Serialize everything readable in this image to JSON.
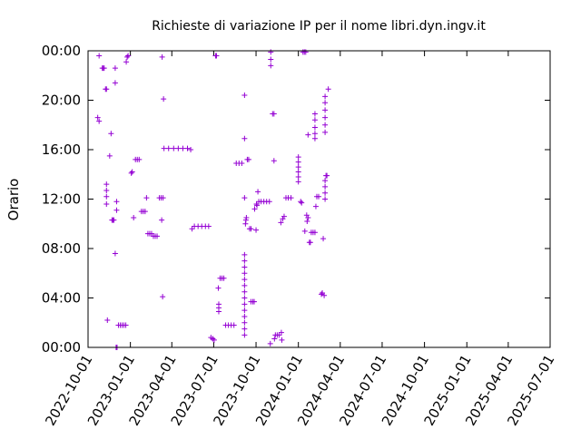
{
  "chart_data": {
    "type": "scatter",
    "title": "Richieste di variazione IP per il nome libri.dyn.ingv.it",
    "xlabel": "",
    "ylabel": "Orario",
    "x_range": [
      "2022-10-01",
      "2025-07-01"
    ],
    "y_range_hours": [
      0,
      24
    ],
    "x_ticks": [
      "2022-10-01",
      "2023-01-01",
      "2023-04-01",
      "2023-07-01",
      "2023-10-01",
      "2024-01-01",
      "2024-04-01",
      "2024-07-01",
      "2024-10-01",
      "2025-01-01",
      "2025-04-01",
      "2025-07-01"
    ],
    "y_ticks": [
      "00:00",
      "04:00",
      "08:00",
      "12:00",
      "16:00",
      "20:00",
      "00:00"
    ],
    "y_tick_values": [
      0,
      4,
      8,
      12,
      16,
      20,
      24
    ],
    "marker": "+",
    "color": "#9400D3",
    "grid": false,
    "legend": "none",
    "series": [
      {
        "points": [
          [
            "2022-10-25",
            23.6
          ],
          [
            "2022-11-01",
            22.6
          ],
          [
            "2022-11-03",
            22.6
          ],
          [
            "2022-11-05",
            22.6
          ],
          [
            "2022-11-08",
            20.9
          ],
          [
            "2022-11-10",
            20.9
          ],
          [
            "2022-10-22",
            18.6
          ],
          [
            "2022-10-25",
            18.3
          ],
          [
            "2022-11-10",
            13.2
          ],
          [
            "2022-11-10",
            12.7
          ],
          [
            "2022-11-10",
            12.2
          ],
          [
            "2022-11-10",
            11.6
          ],
          [
            "2022-11-17",
            15.5
          ],
          [
            "2022-11-20",
            17.3
          ],
          [
            "2022-11-22",
            10.3
          ],
          [
            "2022-11-24",
            10.3
          ],
          [
            "2022-11-26",
            10.3
          ],
          [
            "2022-11-12",
            2.2
          ],
          [
            "2022-11-29",
            7.6
          ],
          [
            "2022-11-29",
            21.4
          ],
          [
            "2022-11-29",
            22.6
          ],
          [
            "2022-12-02",
            11.8
          ],
          [
            "2022-12-02",
            11.1
          ],
          [
            "2022-12-01",
            0.0
          ],
          [
            "2022-12-03",
            0.0
          ],
          [
            "2022-12-06",
            1.8
          ],
          [
            "2022-12-10",
            1.8
          ],
          [
            "2022-12-14",
            1.8
          ],
          [
            "2022-12-18",
            1.8
          ],
          [
            "2022-12-22",
            1.8
          ],
          [
            "2022-12-23",
            23.1
          ],
          [
            "2022-12-25",
            23.5
          ],
          [
            "2022-12-27",
            23.6
          ],
          [
            "2023-01-03",
            14.1
          ],
          [
            "2023-01-05",
            14.2
          ],
          [
            "2023-01-08",
            10.5
          ],
          [
            "2023-01-12",
            15.2
          ],
          [
            "2023-01-16",
            15.2
          ],
          [
            "2023-01-20",
            15.2
          ],
          [
            "2023-01-25",
            11.0
          ],
          [
            "2023-01-29",
            11.0
          ],
          [
            "2023-02-02",
            11.0
          ],
          [
            "2023-02-05",
            12.1
          ],
          [
            "2023-02-08",
            9.2
          ],
          [
            "2023-02-12",
            9.2
          ],
          [
            "2023-02-16",
            9.2
          ],
          [
            "2023-02-20",
            9.0
          ],
          [
            "2023-02-24",
            9.0
          ],
          [
            "2023-02-28",
            9.0
          ],
          [
            "2023-03-05",
            12.1
          ],
          [
            "2023-03-09",
            12.1
          ],
          [
            "2023-03-13",
            12.1
          ],
          [
            "2023-03-10",
            10.3
          ],
          [
            "2023-03-12",
            4.1
          ],
          [
            "2023-03-14",
            20.1
          ],
          [
            "2023-03-11",
            23.5
          ],
          [
            "2023-03-15",
            16.1
          ],
          [
            "2023-03-25",
            16.1
          ],
          [
            "2023-04-05",
            16.1
          ],
          [
            "2023-04-15",
            16.1
          ],
          [
            "2023-04-25",
            16.1
          ],
          [
            "2023-05-05",
            16.1
          ],
          [
            "2023-05-12",
            16.0
          ],
          [
            "2023-05-15",
            9.6
          ],
          [
            "2023-05-20",
            9.8
          ],
          [
            "2023-05-28",
            9.8
          ],
          [
            "2023-06-05",
            9.8
          ],
          [
            "2023-06-13",
            9.8
          ],
          [
            "2023-06-20",
            9.8
          ],
          [
            "2023-06-25",
            0.8
          ],
          [
            "2023-06-29",
            0.7
          ],
          [
            "2023-07-02",
            0.6
          ],
          [
            "2023-07-07",
            23.6
          ],
          [
            "2023-07-05",
            23.6
          ],
          [
            "2023-07-11",
            4.8
          ],
          [
            "2023-07-12",
            3.5
          ],
          [
            "2023-07-12",
            3.2
          ],
          [
            "2023-07-12",
            2.9
          ],
          [
            "2023-07-15",
            5.6
          ],
          [
            "2023-07-19",
            5.6
          ],
          [
            "2023-07-23",
            5.6
          ],
          [
            "2023-07-27",
            1.8
          ],
          [
            "2023-08-02",
            1.8
          ],
          [
            "2023-08-08",
            1.8
          ],
          [
            "2023-08-14",
            1.8
          ],
          [
            "2023-08-19",
            14.9
          ],
          [
            "2023-08-25",
            14.9
          ],
          [
            "2023-08-31",
            14.9
          ],
          [
            "2023-09-06",
            20.4
          ],
          [
            "2023-09-06",
            16.9
          ],
          [
            "2023-09-06",
            12.1
          ],
          [
            "2023-09-08",
            10.0
          ],
          [
            "2023-09-09",
            10.3
          ],
          [
            "2023-09-10",
            10.5
          ],
          [
            "2023-09-06",
            7.5
          ],
          [
            "2023-09-06",
            7.0
          ],
          [
            "2023-09-06",
            6.5
          ],
          [
            "2023-09-06",
            6.0
          ],
          [
            "2023-09-06",
            5.5
          ],
          [
            "2023-09-06",
            5.0
          ],
          [
            "2023-09-06",
            4.5
          ],
          [
            "2023-09-06",
            4.0
          ],
          [
            "2023-09-06",
            3.5
          ],
          [
            "2023-09-06",
            3.0
          ],
          [
            "2023-09-06",
            2.5
          ],
          [
            "2023-09-06",
            2.0
          ],
          [
            "2023-09-06",
            1.5
          ],
          [
            "2023-09-06",
            1.0
          ],
          [
            "2023-09-12",
            15.2
          ],
          [
            "2023-09-15",
            15.2
          ],
          [
            "2023-09-17",
            9.6
          ],
          [
            "2023-09-20",
            9.6
          ],
          [
            "2023-09-20",
            3.7
          ],
          [
            "2023-09-24",
            3.7
          ],
          [
            "2023-09-27",
            3.7
          ],
          [
            "2023-09-28",
            11.2
          ],
          [
            "2023-10-01",
            9.5
          ],
          [
            "2023-10-03",
            11.5
          ],
          [
            "2023-10-05",
            12.6
          ],
          [
            "2023-10-02",
            11.6
          ],
          [
            "2023-10-07",
            11.8
          ],
          [
            "2023-10-12",
            11.8
          ],
          [
            "2023-10-18",
            11.8
          ],
          [
            "2023-10-24",
            11.8
          ],
          [
            "2023-10-30",
            11.8
          ],
          [
            "2023-11-01",
            0.3
          ],
          [
            "2023-11-02",
            23.9
          ],
          [
            "2023-11-02",
            23.3
          ],
          [
            "2023-11-02",
            22.8
          ],
          [
            "2023-11-06",
            18.9
          ],
          [
            "2023-11-09",
            18.9
          ],
          [
            "2023-11-09",
            15.1
          ],
          [
            "2023-11-10",
            0.7
          ],
          [
            "2023-11-12",
            1.0
          ],
          [
            "2023-11-16",
            1.0
          ],
          [
            "2023-11-20",
            1.0
          ],
          [
            "2023-11-25",
            1.2
          ],
          [
            "2023-11-26",
            0.6
          ],
          [
            "2023-11-24",
            10.1
          ],
          [
            "2023-11-28",
            10.4
          ],
          [
            "2023-12-01",
            10.6
          ],
          [
            "2023-12-05",
            12.1
          ],
          [
            "2023-12-10",
            12.1
          ],
          [
            "2023-12-16",
            12.1
          ],
          [
            "2024-01-01",
            15.4
          ],
          [
            "2024-01-01",
            15.0
          ],
          [
            "2024-01-01",
            14.6
          ],
          [
            "2024-01-01",
            14.2
          ],
          [
            "2024-01-01",
            13.8
          ],
          [
            "2024-01-01",
            13.4
          ],
          [
            "2024-01-06",
            11.8
          ],
          [
            "2024-01-08",
            11.7
          ],
          [
            "2024-01-11",
            23.9
          ],
          [
            "2024-01-14",
            23.9
          ],
          [
            "2024-01-17",
            23.9
          ],
          [
            "2024-01-15",
            9.4
          ],
          [
            "2024-01-19",
            10.7
          ],
          [
            "2024-01-22",
            10.5
          ],
          [
            "2024-01-20",
            10.2
          ],
          [
            "2024-01-22",
            17.2
          ],
          [
            "2024-01-25",
            8.5
          ],
          [
            "2024-01-27",
            8.5
          ],
          [
            "2024-01-29",
            9.3
          ],
          [
            "2024-02-02",
            9.3
          ],
          [
            "2024-02-06",
            9.3
          ],
          [
            "2024-02-08",
            11.4
          ],
          [
            "2024-02-10",
            12.2
          ],
          [
            "2024-02-14",
            12.2
          ],
          [
            "2024-02-06",
            18.9
          ],
          [
            "2024-02-06",
            18.4
          ],
          [
            "2024-02-06",
            17.8
          ],
          [
            "2024-02-06",
            17.3
          ],
          [
            "2024-02-06",
            16.9
          ],
          [
            "2024-02-20",
            4.3
          ],
          [
            "2024-02-22",
            4.4
          ],
          [
            "2024-02-26",
            4.2
          ],
          [
            "2024-02-24",
            8.8
          ],
          [
            "2024-03-01",
            13.9
          ],
          [
            "2024-03-03",
            13.9
          ],
          [
            "2024-02-28",
            20.3
          ],
          [
            "2024-02-28",
            19.8
          ],
          [
            "2024-02-28",
            19.2
          ],
          [
            "2024-02-28",
            18.6
          ],
          [
            "2024-02-28",
            18.0
          ],
          [
            "2024-02-28",
            17.4
          ],
          [
            "2024-02-28",
            13.5
          ],
          [
            "2024-02-28",
            13.0
          ],
          [
            "2024-02-28",
            12.5
          ],
          [
            "2024-02-28",
            12.0
          ],
          [
            "2024-03-06",
            20.9
          ]
        ]
      }
    ]
  }
}
